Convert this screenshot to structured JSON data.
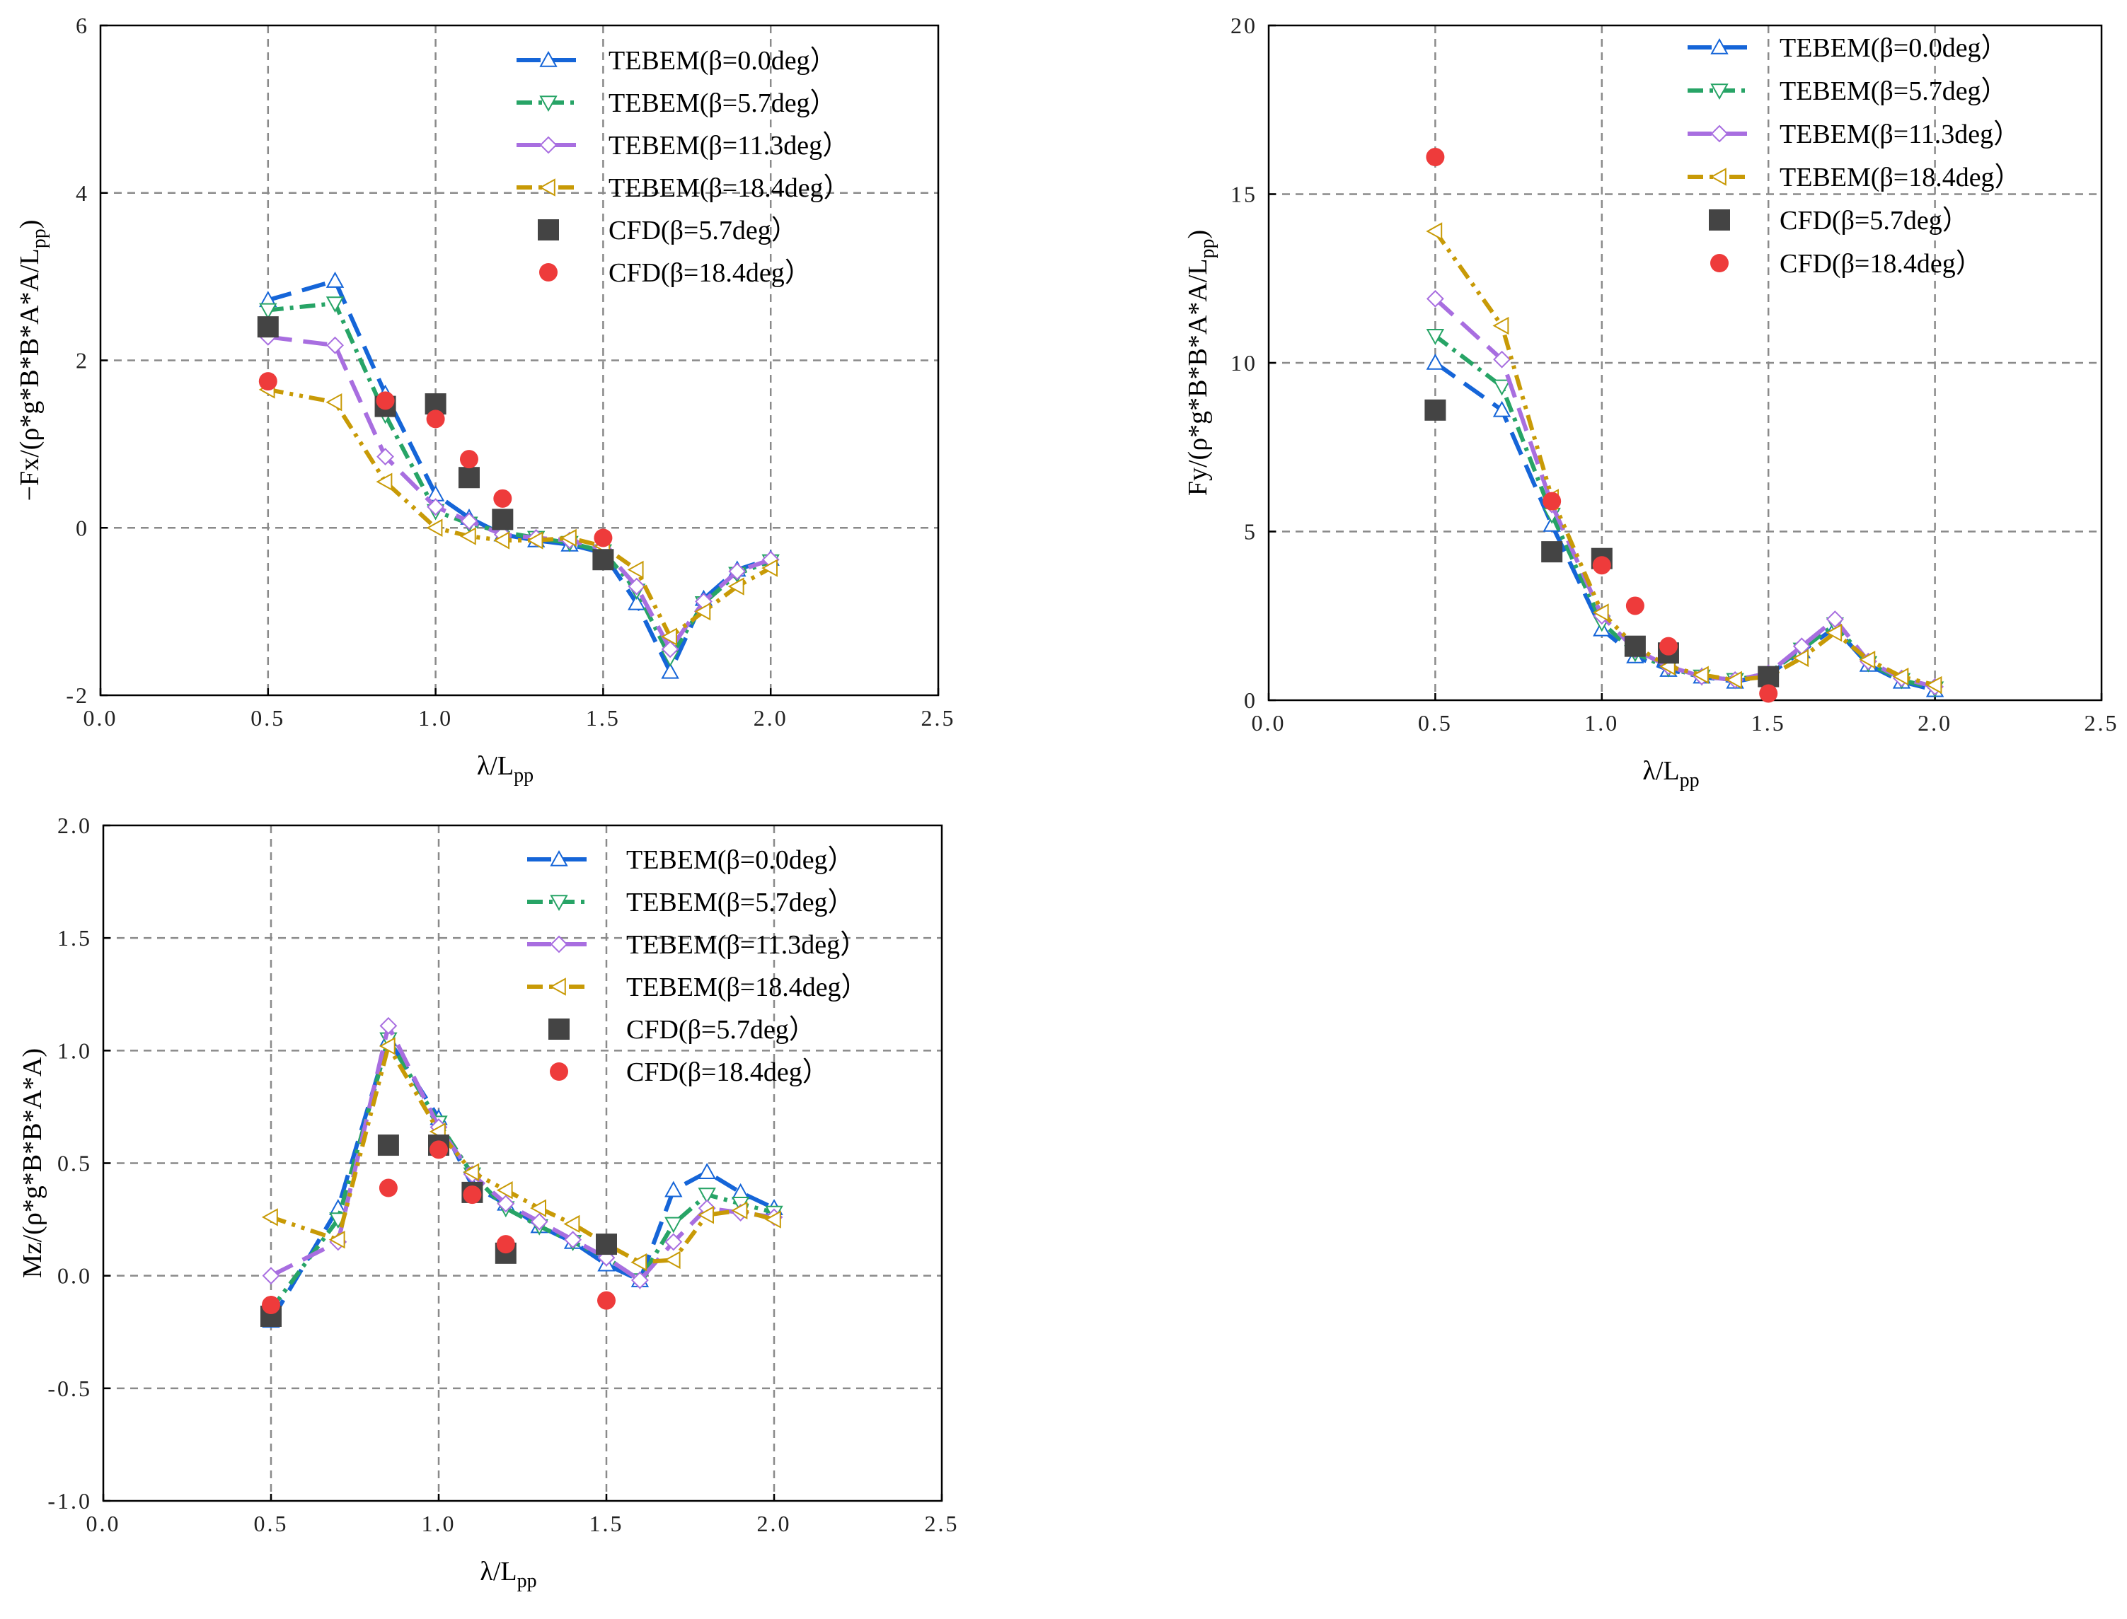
{
  "palette": {
    "s0": "#1565d8",
    "s1": "#27a466",
    "s2": "#a86ee0",
    "s3": "#c89a06",
    "cfd1": "#444444",
    "cfd2": "#ee3b3b"
  },
  "chart_data": [
    {
      "type": "line",
      "name": "fx",
      "xlabel_main": "λ/L",
      "xlabel_sub": "pp",
      "ylabel_main": "−Fx/(ρ*g*B*B*A*A/L",
      "ylabel_sub": "pp",
      "ylabel_tail": ")",
      "xlim": [
        0.0,
        2.5
      ],
      "ylim": [
        -2,
        6
      ],
      "xticks": [
        {
          "v": 0.0,
          "label": "0.0"
        },
        {
          "v": 0.5,
          "label": "0.5"
        },
        {
          "v": 1.0,
          "label": "1.0"
        },
        {
          "v": 1.5,
          "label": "1.5"
        },
        {
          "v": 2.0,
          "label": "2.0"
        },
        {
          "v": 2.5,
          "label": "2.5"
        }
      ],
      "yticks": [
        {
          "v": -2,
          "label": "-2"
        },
        {
          "v": 0,
          "label": "0"
        },
        {
          "v": 2,
          "label": "2"
        },
        {
          "v": 4,
          "label": "4"
        },
        {
          "v": 6,
          "label": "6"
        }
      ],
      "series": [
        {
          "name": "TEBEM(β=0.0deg）",
          "style": "s0",
          "marker": "tri-up",
          "x": [
            0.5,
            0.7,
            0.85,
            1.0,
            1.1,
            1.2,
            1.3,
            1.4,
            1.5,
            1.6,
            1.7,
            1.8,
            1.9,
            2.0
          ],
          "y": [
            2.72,
            2.95,
            1.6,
            0.4,
            0.12,
            -0.08,
            -0.15,
            -0.2,
            -0.3,
            -0.9,
            -1.72,
            -0.85,
            -0.5,
            -0.37
          ]
        },
        {
          "name": "TEBEM(β=5.7deg）",
          "style": "s1",
          "marker": "tri-down",
          "x": [
            0.5,
            0.7,
            0.85,
            1.0,
            1.1,
            1.2,
            1.3,
            1.4,
            1.5,
            1.6,
            1.7,
            1.8,
            1.9,
            2.0
          ],
          "y": [
            2.6,
            2.68,
            1.35,
            0.2,
            0.05,
            -0.05,
            -0.12,
            -0.18,
            -0.28,
            -0.75,
            -1.55,
            -0.9,
            -0.55,
            -0.4
          ]
        },
        {
          "name": "TEBEM(β=11.3deg）",
          "style": "s2",
          "marker": "diamond",
          "x": [
            0.5,
            0.7,
            0.85,
            1.0,
            1.1,
            1.2,
            1.3,
            1.4,
            1.5,
            1.6,
            1.7,
            1.8,
            1.9,
            2.0
          ],
          "y": [
            2.28,
            2.18,
            0.85,
            0.25,
            0.08,
            -0.08,
            -0.12,
            -0.15,
            -0.25,
            -0.7,
            -1.45,
            -0.88,
            -0.52,
            -0.38
          ]
        },
        {
          "name": "TEBEM(β=18.4deg）",
          "style": "s3",
          "marker": "tri-left",
          "x": [
            0.5,
            0.7,
            0.85,
            1.0,
            1.1,
            1.2,
            1.3,
            1.4,
            1.5,
            1.6,
            1.7,
            1.8,
            1.9,
            2.0
          ],
          "y": [
            1.65,
            1.5,
            0.55,
            0.0,
            -0.1,
            -0.15,
            -0.15,
            -0.12,
            -0.22,
            -0.5,
            -1.3,
            -1.0,
            -0.7,
            -0.48
          ]
        },
        {
          "name": "CFD(β=5.7deg）",
          "style": "cfd1",
          "marker": "square",
          "x": [
            0.5,
            0.85,
            1.0,
            1.1,
            1.2,
            1.5
          ],
          "y": [
            2.4,
            1.45,
            1.48,
            0.6,
            0.1,
            -0.38
          ]
        },
        {
          "name": "CFD(β=18.4deg）",
          "style": "cfd2",
          "marker": "circle",
          "x": [
            0.5,
            0.85,
            1.0,
            1.1,
            1.2,
            1.5
          ],
          "y": [
            1.75,
            1.52,
            1.3,
            0.82,
            0.35,
            -0.12
          ]
        }
      ],
      "legend_position": "top-right"
    },
    {
      "type": "line",
      "name": "fy",
      "xlabel_main": "λ/L",
      "xlabel_sub": "pp",
      "ylabel_main": "Fy/(ρ*g*B*B*A*A/L",
      "ylabel_sub": "pp",
      "ylabel_tail": ")",
      "xlim": [
        0.0,
        2.5
      ],
      "ylim": [
        0,
        20
      ],
      "xticks": [
        {
          "v": 0.0,
          "label": "0.0"
        },
        {
          "v": 0.5,
          "label": "0.5"
        },
        {
          "v": 1.0,
          "label": "1.0"
        },
        {
          "v": 1.5,
          "label": "1.5"
        },
        {
          "v": 2.0,
          "label": "2.0"
        },
        {
          "v": 2.5,
          "label": "2.5"
        }
      ],
      "yticks": [
        {
          "v": 0,
          "label": "0"
        },
        {
          "v": 5,
          "label": "5"
        },
        {
          "v": 10,
          "label": "10"
        },
        {
          "v": 15,
          "label": "15"
        },
        {
          "v": 20,
          "label": "20"
        }
      ],
      "series": [
        {
          "name": "TEBEM(β=0.0deg）",
          "style": "s0",
          "marker": "tri-up",
          "x": [
            0.5,
            0.7,
            0.85,
            1.0,
            1.1,
            1.2,
            1.3,
            1.4,
            1.5,
            1.6,
            1.7,
            1.8,
            1.9,
            2.0
          ],
          "y": [
            10.0,
            8.6,
            5.2,
            2.1,
            1.3,
            0.9,
            0.7,
            0.55,
            0.75,
            1.45,
            2.15,
            1.05,
            0.55,
            0.3
          ]
        },
        {
          "name": "TEBEM(β=5.7deg）",
          "style": "s1",
          "marker": "tri-down",
          "x": [
            0.5,
            0.7,
            0.85,
            1.0,
            1.1,
            1.2,
            1.3,
            1.4,
            1.5,
            1.6,
            1.7,
            1.8,
            1.9,
            2.0
          ],
          "y": [
            10.8,
            9.3,
            5.5,
            2.3,
            1.4,
            0.95,
            0.7,
            0.6,
            0.8,
            1.5,
            2.25,
            1.1,
            0.6,
            0.35
          ]
        },
        {
          "name": "TEBEM(β=11.3deg）",
          "style": "s2",
          "marker": "diamond",
          "x": [
            0.5,
            0.7,
            0.85,
            1.0,
            1.1,
            1.2,
            1.3,
            1.4,
            1.5,
            1.6,
            1.7,
            1.8,
            1.9,
            2.0
          ],
          "y": [
            11.9,
            10.1,
            5.8,
            2.5,
            1.5,
            1.0,
            0.7,
            0.6,
            0.8,
            1.6,
            2.4,
            1.15,
            0.65,
            0.4
          ]
        },
        {
          "name": "TEBEM(β=18.4deg）",
          "style": "s3",
          "marker": "tri-left",
          "x": [
            0.5,
            0.7,
            0.85,
            1.0,
            1.1,
            1.2,
            1.3,
            1.4,
            1.5,
            1.6,
            1.7,
            1.8,
            1.9,
            2.0
          ],
          "y": [
            13.9,
            11.1,
            6.0,
            2.6,
            1.6,
            1.0,
            0.75,
            0.6,
            0.7,
            1.25,
            2.0,
            1.2,
            0.7,
            0.45
          ]
        },
        {
          "name": "CFD(β=5.7deg）",
          "style": "cfd1",
          "marker": "square",
          "x": [
            0.5,
            0.85,
            1.0,
            1.1,
            1.2,
            1.5
          ],
          "y": [
            8.6,
            4.4,
            4.2,
            1.6,
            1.4,
            0.7
          ]
        },
        {
          "name": "CFD(β=18.4deg）",
          "style": "cfd2",
          "marker": "circle",
          "x": [
            0.5,
            0.85,
            1.0,
            1.1,
            1.2,
            1.5
          ],
          "y": [
            16.1,
            5.9,
            4.0,
            2.8,
            1.6,
            0.2
          ]
        }
      ],
      "legend_position": "top-right"
    },
    {
      "type": "line",
      "name": "mz",
      "xlabel_main": "λ/L",
      "xlabel_sub": "pp",
      "ylabel_main": "Mz/(ρ*g*B*B*A*A)",
      "ylabel_sub": "",
      "ylabel_tail": "",
      "xlim": [
        0.0,
        2.5
      ],
      "ylim": [
        -1.0,
        2.0
      ],
      "xticks": [
        {
          "v": 0.0,
          "label": "0.0"
        },
        {
          "v": 0.5,
          "label": "0.5"
        },
        {
          "v": 1.0,
          "label": "1.0"
        },
        {
          "v": 1.5,
          "label": "1.5"
        },
        {
          "v": 2.0,
          "label": "2.0"
        },
        {
          "v": 2.5,
          "label": "2.5"
        }
      ],
      "yticks": [
        {
          "v": -1.0,
          "label": "-1.0"
        },
        {
          "v": -0.5,
          "label": "-0.5"
        },
        {
          "v": 0.0,
          "label": "0.0"
        },
        {
          "v": 0.5,
          "label": "0.5"
        },
        {
          "v": 1.0,
          "label": "1.0"
        },
        {
          "v": 1.5,
          "label": "1.5"
        },
        {
          "v": 2.0,
          "label": "2.0"
        }
      ],
      "series": [
        {
          "name": "TEBEM(β=0.0deg）",
          "style": "s0",
          "marker": "tri-up",
          "x": [
            0.5,
            0.7,
            0.85,
            1.0,
            1.1,
            1.2,
            1.3,
            1.4,
            1.5,
            1.6,
            1.7,
            1.8,
            1.9,
            2.0
          ],
          "y": [
            -0.2,
            0.3,
            1.05,
            0.7,
            0.4,
            0.32,
            0.22,
            0.15,
            0.05,
            -0.02,
            0.38,
            0.46,
            0.37,
            0.3
          ]
        },
        {
          "name": "TEBEM(β=5.7deg）",
          "style": "s1",
          "marker": "tri-down",
          "x": [
            0.5,
            0.7,
            0.85,
            1.0,
            1.1,
            1.2,
            1.3,
            1.4,
            1.5,
            1.6,
            1.7,
            1.8,
            1.9,
            2.0
          ],
          "y": [
            -0.15,
            0.25,
            1.05,
            0.68,
            0.45,
            0.3,
            0.22,
            0.15,
            0.08,
            -0.02,
            0.23,
            0.36,
            0.32,
            0.28
          ]
        },
        {
          "name": "TEBEM(β=11.3deg）",
          "style": "s2",
          "marker": "diamond",
          "x": [
            0.5,
            0.7,
            0.85,
            1.0,
            1.1,
            1.2,
            1.3,
            1.4,
            1.5,
            1.6,
            1.7,
            1.8,
            1.9,
            2.0
          ],
          "y": [
            0.0,
            0.15,
            1.11,
            0.66,
            0.45,
            0.32,
            0.24,
            0.16,
            0.08,
            -0.02,
            0.15,
            0.3,
            0.28,
            0.26
          ]
        },
        {
          "name": "TEBEM(β=18.4deg）",
          "style": "s3",
          "marker": "tri-left",
          "x": [
            0.5,
            0.7,
            0.85,
            1.0,
            1.1,
            1.2,
            1.3,
            1.4,
            1.5,
            1.6,
            1.7,
            1.8,
            1.9,
            2.0
          ],
          "y": [
            0.26,
            0.16,
            1.02,
            0.64,
            0.46,
            0.38,
            0.3,
            0.23,
            0.14,
            0.06,
            0.07,
            0.27,
            0.29,
            0.25
          ]
        },
        {
          "name": "CFD(β=5.7deg）",
          "style": "cfd1",
          "marker": "square",
          "x": [
            0.5,
            0.85,
            1.0,
            1.1,
            1.2,
            1.5
          ],
          "y": [
            -0.18,
            0.58,
            0.58,
            0.37,
            0.1,
            0.14
          ]
        },
        {
          "name": "CFD(β=18.4deg）",
          "style": "cfd2",
          "marker": "circle",
          "x": [
            0.5,
            0.85,
            1.0,
            1.1,
            1.2,
            1.5
          ],
          "y": [
            -0.13,
            0.39,
            0.56,
            0.36,
            0.14,
            -0.11
          ]
        }
      ],
      "legend_position": "top-right"
    }
  ]
}
